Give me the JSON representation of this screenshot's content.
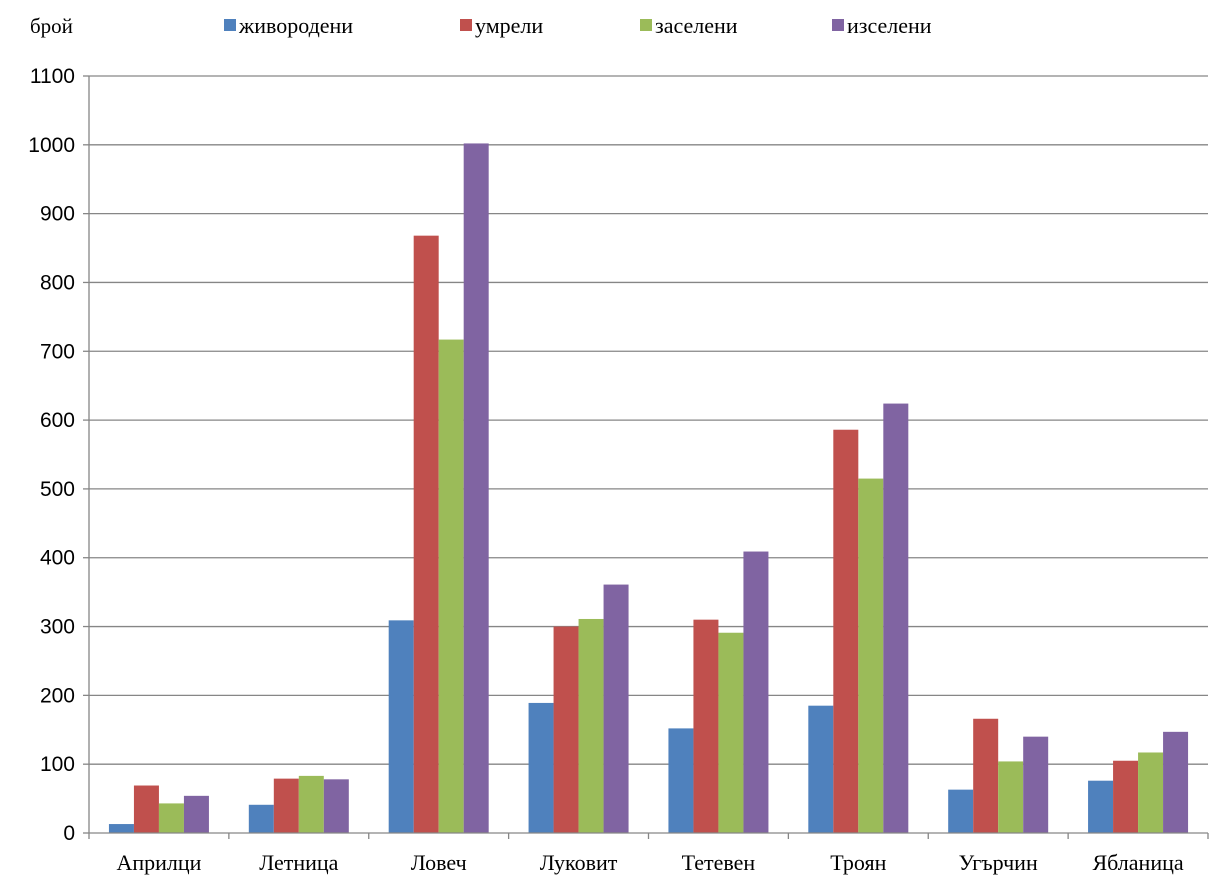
{
  "chart_data": {
    "type": "bar",
    "ylabel": "брой",
    "xlabel": "",
    "ylim": [
      0,
      1100
    ],
    "yticks": [
      0,
      100,
      200,
      300,
      400,
      500,
      600,
      700,
      800,
      900,
      1000,
      1100
    ],
    "grid": true,
    "legend_position": "top",
    "categories": [
      "Априлци",
      "Летница",
      "Ловеч",
      "Луковит",
      "Тетевен",
      "Троян",
      "Угърчин",
      "Ябланица"
    ],
    "series": [
      {
        "name": "живородени",
        "color": "#4f81bd",
        "values": [
          13,
          41,
          309,
          189,
          152,
          185,
          63,
          76
        ]
      },
      {
        "name": "умрели",
        "color": "#c0504d",
        "values": [
          69,
          79,
          868,
          300,
          310,
          586,
          166,
          105
        ]
      },
      {
        "name": "заселени",
        "color": "#9bbb59",
        "values": [
          43,
          83,
          717,
          311,
          291,
          515,
          104,
          117
        ]
      },
      {
        "name": "изселени",
        "color": "#8064a2",
        "values": [
          54,
          78,
          1002,
          361,
          409,
          624,
          140,
          147
        ]
      }
    ]
  }
}
